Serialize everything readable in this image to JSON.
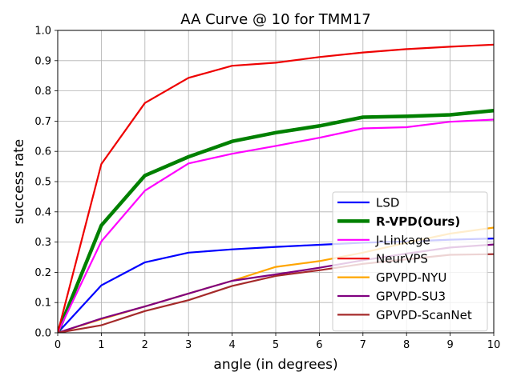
{
  "chart_data": {
    "type": "line",
    "title": "AA Curve @ 10 for TMM17",
    "xlabel": "angle (in degrees)",
    "ylabel": "success rate",
    "xlim": [
      0,
      10
    ],
    "ylim": [
      0,
      1.0
    ],
    "xticks": [
      "0",
      "1",
      "2",
      "3",
      "4",
      "5",
      "6",
      "7",
      "8",
      "9",
      "10"
    ],
    "yticks": [
      "0.0",
      "0.1",
      "0.2",
      "0.3",
      "0.4",
      "0.5",
      "0.6",
      "0.7",
      "0.8",
      "0.9",
      "1.0"
    ],
    "grid": true,
    "legend_position": "lower-right",
    "x": [
      0,
      1,
      2,
      3,
      4,
      5,
      6,
      7,
      8,
      9,
      10
    ],
    "series": [
      {
        "name": "LSD",
        "color": "#0000ff",
        "bold": false,
        "values": [
          0.0,
          0.157,
          0.233,
          0.265,
          0.276,
          0.284,
          0.291,
          0.298,
          0.302,
          0.308,
          0.312
        ]
      },
      {
        "name": "R-VPD(Ours)",
        "color": "#008000",
        "bold": true,
        "values": [
          0.0,
          0.355,
          0.52,
          0.582,
          0.633,
          0.662,
          0.684,
          0.713,
          0.716,
          0.721,
          0.735
        ]
      },
      {
        "name": "J-Linkage",
        "color": "#ff00ff",
        "bold": false,
        "values": [
          0.0,
          0.302,
          0.47,
          0.56,
          0.592,
          0.618,
          0.645,
          0.676,
          0.68,
          0.698,
          0.705
        ]
      },
      {
        "name": "NeurVPS",
        "color": "#ee0000",
        "bold": false,
        "values": [
          0.0,
          0.558,
          0.76,
          0.843,
          0.883,
          0.893,
          0.912,
          0.927,
          0.938,
          0.946,
          0.953
        ]
      },
      {
        "name": "GPVPD-NYU",
        "color": "#ffa500",
        "bold": false,
        "values": [
          0.0,
          0.045,
          0.087,
          0.13,
          0.172,
          0.218,
          0.237,
          0.265,
          0.298,
          0.328,
          0.348
        ]
      },
      {
        "name": "GPVPD-SU3",
        "color": "#800080",
        "bold": false,
        "values": [
          0.0,
          0.047,
          0.087,
          0.13,
          0.172,
          0.193,
          0.215,
          0.24,
          0.262,
          0.282,
          0.292
        ]
      },
      {
        "name": "GPVPD-ScanNet",
        "color": "#a52a2a",
        "bold": false,
        "values": [
          0.0,
          0.025,
          0.072,
          0.108,
          0.155,
          0.188,
          0.207,
          0.228,
          0.243,
          0.258,
          0.26
        ]
      }
    ]
  }
}
